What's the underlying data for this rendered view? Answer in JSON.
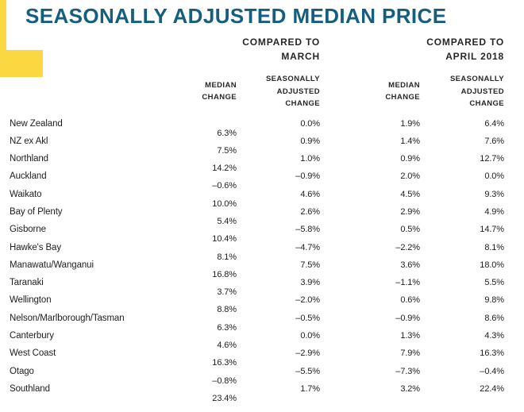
{
  "title": "SEASONALLY ADJUSTED MEDIAN PRICE",
  "colors": {
    "title_teal": "#155E7D",
    "accent_yellow": "#FBD742",
    "text": "#1E1E1E"
  },
  "table": {
    "group_headers": [
      {
        "lines": [
          "COMPARED TO",
          "MARCH"
        ]
      },
      {
        "lines": [
          "COMPARED TO",
          "APRIL 2018"
        ]
      }
    ],
    "column_headers": [
      {
        "lines": [
          "MEDIAN",
          "CHANGE"
        ]
      },
      {
        "lines": [
          "SEASONALLY",
          "ADJUSTED",
          "CHANGE"
        ]
      },
      {
        "lines": [
          "MEDIAN",
          "CHANGE"
        ]
      },
      {
        "lines": [
          "SEASONALLY",
          "ADJUSTED",
          "CHANGE"
        ]
      }
    ],
    "rows": [
      {
        "region": "New Zealand",
        "values": [
          "0.0%",
          "1.9%",
          "6.4%",
          "6.3%"
        ]
      },
      {
        "region": "NZ ex Akl",
        "values": [
          "0.9%",
          "1.4%",
          "7.6%",
          "7.5%"
        ]
      },
      {
        "region": "Northland",
        "values": [
          "1.0%",
          "0.9%",
          "12.7%",
          "14.2%"
        ]
      },
      {
        "region": "Auckland",
        "values": [
          "–0.9%",
          "2.0%",
          "0.0%",
          "–0.6%"
        ]
      },
      {
        "region": "Waikato",
        "values": [
          "4.6%",
          "4.5%",
          "9.3%",
          "10.0%"
        ]
      },
      {
        "region": "Bay of Plenty",
        "values": [
          "2.6%",
          "2.9%",
          "4.9%",
          "5.4%"
        ]
      },
      {
        "region": "Gisborne",
        "values": [
          "–5.8%",
          "0.5%",
          "14.7%",
          "10.4%"
        ]
      },
      {
        "region": "Hawke's Bay",
        "values": [
          "–4.7%",
          "–2.2%",
          "8.1%",
          "8.1%"
        ]
      },
      {
        "region": "Manawatu/Wanganui",
        "values": [
          "7.5%",
          "3.6%",
          "18.0%",
          "16.8%"
        ]
      },
      {
        "region": "Taranaki",
        "values": [
          "3.9%",
          "–1.1%",
          "5.5%",
          "3.7%"
        ]
      },
      {
        "region": "Wellington",
        "values": [
          "–2.0%",
          "0.6%",
          "9.8%",
          "8.8%"
        ]
      },
      {
        "region": "Nelson/Marlborough/Tasman",
        "values": [
          "–0.5%",
          "–0.9%",
          "8.6%",
          "6.3%"
        ]
      },
      {
        "region": "Canterbury",
        "values": [
          "0.0%",
          "1.3%",
          "4.3%",
          "4.6%"
        ]
      },
      {
        "region": "West Coast",
        "values": [
          "–2.9%",
          "7.9%",
          "16.3%",
          "16.3%"
        ]
      },
      {
        "region": "Otago",
        "values": [
          "–5.5%",
          "–7.3%",
          "–0.4%",
          "–0.8%"
        ]
      },
      {
        "region": "Southland",
        "values": [
          "1.7%",
          "3.2%",
          "22.4%",
          "23.4%"
        ]
      }
    ]
  },
  "chart_data": {
    "type": "table",
    "title": "SEASONALLY ADJUSTED MEDIAN PRICE",
    "column_groups": [
      "COMPARED TO MARCH",
      "COMPARED TO APRIL 2018"
    ],
    "columns": [
      "Region",
      "Median Change (vs March)",
      "Seasonally Adjusted Change (vs March)",
      "Median Change (vs April 2018)",
      "Seasonally Adjusted Change (vs April 2018)"
    ],
    "rows": [
      [
        "New Zealand",
        "0.0%",
        "1.9%",
        "6.4%",
        "6.3%"
      ],
      [
        "NZ ex Akl",
        "0.9%",
        "1.4%",
        "7.6%",
        "7.5%"
      ],
      [
        "Northland",
        "1.0%",
        "0.9%",
        "12.7%",
        "14.2%"
      ],
      [
        "Auckland",
        "-0.9%",
        "2.0%",
        "0.0%",
        "-0.6%"
      ],
      [
        "Waikato",
        "4.6%",
        "4.5%",
        "9.3%",
        "10.0%"
      ],
      [
        "Bay of Plenty",
        "2.6%",
        "2.9%",
        "4.9%",
        "5.4%"
      ],
      [
        "Gisborne",
        "-5.8%",
        "0.5%",
        "14.7%",
        "10.4%"
      ],
      [
        "Hawke's Bay",
        "-4.7%",
        "-2.2%",
        "8.1%",
        "8.1%"
      ],
      [
        "Manawatu/Wanganui",
        "7.5%",
        "3.6%",
        "18.0%",
        "16.8%"
      ],
      [
        "Taranaki",
        "3.9%",
        "-1.1%",
        "5.5%",
        "3.7%"
      ],
      [
        "Wellington",
        "-2.0%",
        "0.6%",
        "9.8%",
        "8.8%"
      ],
      [
        "Nelson/Marlborough/Tasman",
        "-0.5%",
        "-0.9%",
        "8.6%",
        "6.3%"
      ],
      [
        "Canterbury",
        "0.0%",
        "1.3%",
        "4.3%",
        "4.6%"
      ],
      [
        "West Coast",
        "-2.9%",
        "7.9%",
        "16.3%",
        "16.3%"
      ],
      [
        "Otago",
        "-5.5%",
        "-7.3%",
        "-0.4%",
        "-0.8%"
      ],
      [
        "Southland",
        "1.7%",
        "3.2%",
        "22.4%",
        "23.4%"
      ]
    ]
  }
}
